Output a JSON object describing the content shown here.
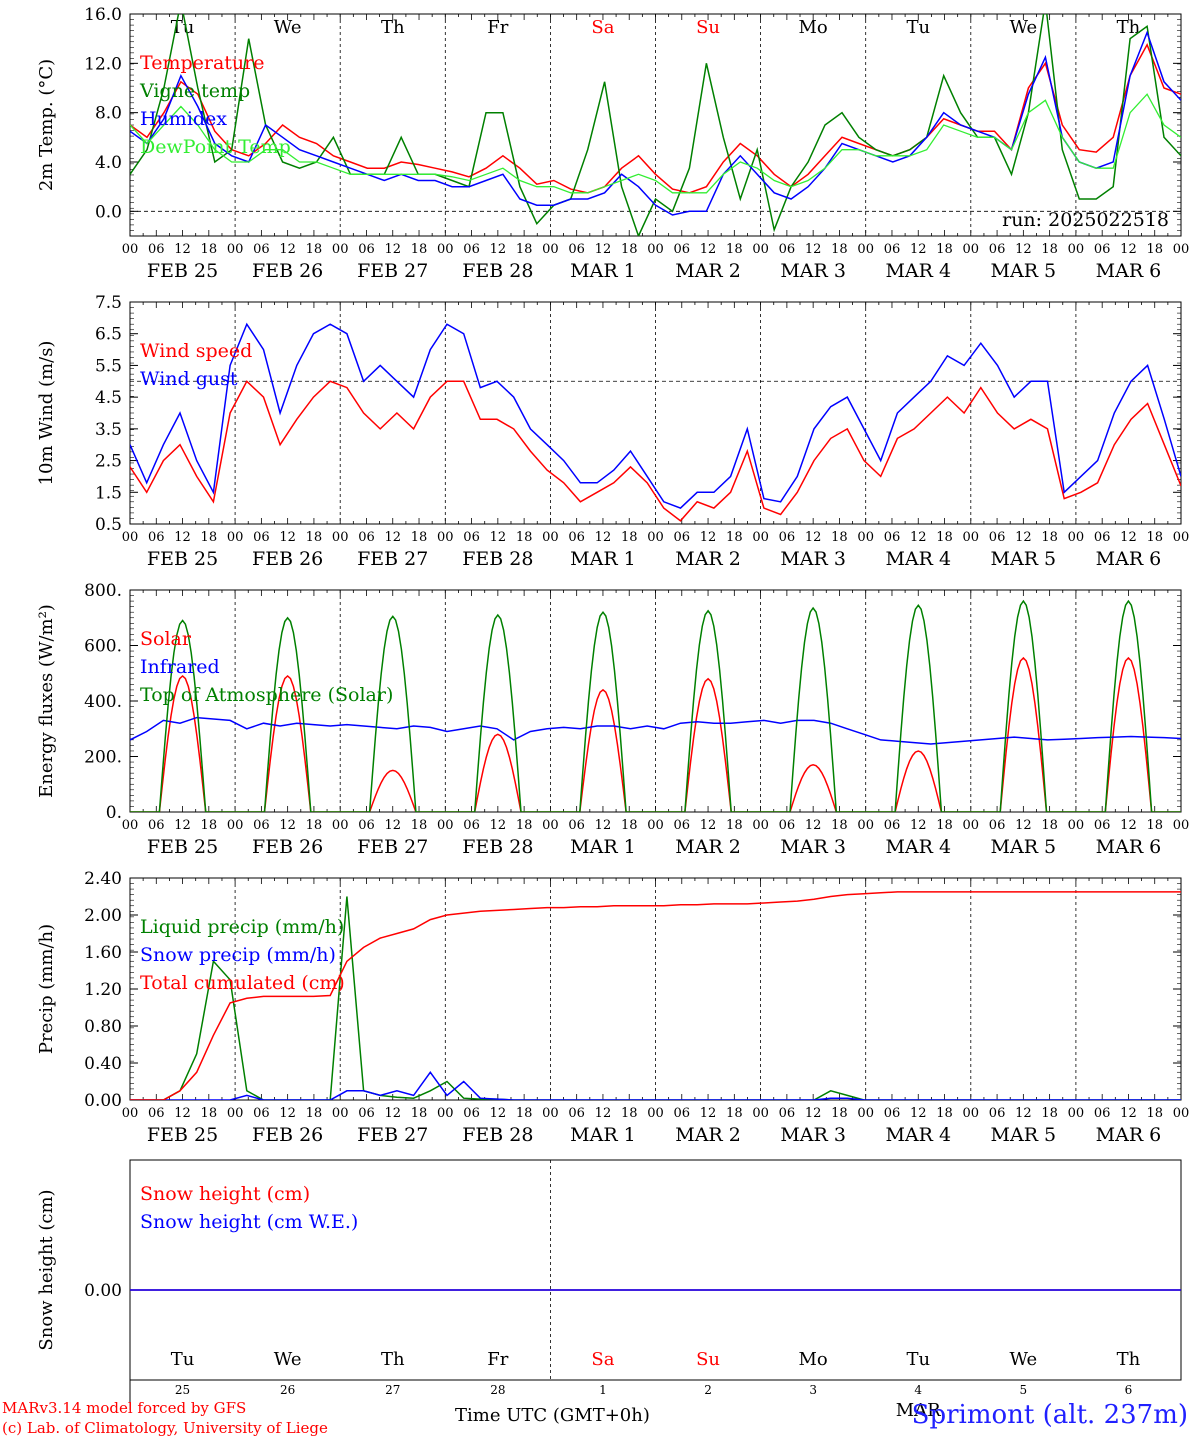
{
  "chart_data": [
    {
      "type": "line",
      "ylabel": "2m Temp. (°C)",
      "ylim": [
        -2,
        16
      ],
      "yticks": [
        "0.0",
        "4.0",
        "8.0",
        "12.0",
        "16.0"
      ],
      "ytick_values": [
        0,
        4,
        8,
        12,
        16
      ],
      "reference_line": 0,
      "run_label": "run: 2025022518",
      "day_names": [
        "Tu",
        "We",
        "Th",
        "Fr",
        "Sa",
        "Su",
        "Mo",
        "Tu",
        "We",
        "Th"
      ],
      "series": [
        {
          "name": "Temperature",
          "color": "#ff0000",
          "values": [
            7.0,
            6.0,
            8.0,
            10.5,
            9.5,
            6.5,
            5.0,
            4.5,
            5.5,
            7.0,
            6.0,
            5.5,
            4.5,
            4.0,
            3.5,
            3.5,
            4.0,
            3.8,
            3.5,
            3.2,
            2.8,
            3.5,
            4.5,
            3.5,
            2.2,
            2.5,
            1.8,
            1.5,
            2.0,
            3.5,
            4.5,
            3.0,
            1.8,
            1.5,
            2.0,
            4.0,
            5.5,
            4.5,
            3.0,
            2.0,
            3.0,
            4.5,
            6.0,
            5.5,
            5.0,
            4.5,
            5.0,
            6.0,
            7.5,
            7.0,
            6.5,
            6.5,
            5.0,
            10.0,
            12.0,
            7.0,
            5.0,
            4.8,
            6.0,
            11.0,
            13.5,
            10.0,
            9.5
          ]
        },
        {
          "name": "Vigne temp",
          "color": "#008000",
          "values": [
            3.0,
            5.0,
            10.0,
            17.0,
            10.0,
            4.0,
            5.0,
            14.0,
            7.0,
            4.0,
            3.5,
            4.0,
            6.0,
            3.0,
            3.0,
            3.0,
            6.0,
            3.0,
            3.0,
            2.5,
            2.0,
            8.0,
            8.0,
            2.0,
            -1.0,
            0.5,
            1.0,
            5.0,
            10.5,
            2.0,
            -2.0,
            1.0,
            0.0,
            3.5,
            12.0,
            6.0,
            1.0,
            5.0,
            -1.5,
            2.0,
            4.0,
            7.0,
            8.0,
            6.0,
            5.0,
            4.5,
            5.0,
            6.0,
            11.0,
            8.0,
            6.0,
            6.0,
            3.0,
            8.0,
            17.0,
            5.0,
            1.0,
            1.0,
            2.0,
            14.0,
            15.0,
            6.0,
            4.5
          ]
        },
        {
          "name": "Humidex",
          "color": "#0000ff",
          "values": [
            6.5,
            5.5,
            7.5,
            11.0,
            8.5,
            5.5,
            4.5,
            4.0,
            7.0,
            6.0,
            5.0,
            4.5,
            4.0,
            3.5,
            3.0,
            2.5,
            3.0,
            2.5,
            2.5,
            2.0,
            2.0,
            2.5,
            3.0,
            1.0,
            0.5,
            0.5,
            1.0,
            1.0,
            1.5,
            3.0,
            2.0,
            0.5,
            -0.3,
            0.0,
            0.0,
            3.0,
            4.5,
            3.0,
            1.5,
            1.0,
            2.0,
            3.5,
            5.5,
            5.0,
            4.5,
            4.0,
            4.5,
            6.0,
            8.0,
            7.0,
            6.5,
            6.0,
            5.0,
            9.5,
            12.5,
            6.0,
            4.0,
            3.5,
            4.0,
            11.0,
            14.5,
            10.5,
            9.0
          ]
        },
        {
          "name": "DewPoint Temp",
          "color": "#33ee33",
          "values": [
            7.0,
            5.5,
            7.0,
            8.5,
            7.0,
            5.0,
            4.0,
            4.0,
            5.0,
            5.0,
            4.0,
            4.0,
            3.5,
            3.0,
            3.0,
            3.0,
            3.0,
            3.0,
            3.0,
            2.8,
            2.5,
            3.0,
            3.5,
            2.5,
            2.0,
            2.0,
            1.5,
            1.5,
            2.0,
            2.5,
            3.0,
            2.5,
            1.5,
            1.5,
            1.5,
            3.0,
            4.0,
            3.5,
            2.5,
            2.0,
            2.5,
            3.5,
            5.0,
            5.0,
            4.5,
            4.5,
            4.5,
            5.0,
            7.0,
            6.5,
            6.0,
            6.0,
            5.0,
            8.0,
            9.0,
            6.0,
            4.0,
            3.5,
            3.5,
            8.0,
            9.5,
            7.0,
            6.0
          ]
        }
      ]
    },
    {
      "type": "line",
      "ylabel": "10m Wind (m/s)",
      "ylim": [
        0.5,
        7.5
      ],
      "yticks": [
        "0.5",
        "1.5",
        "2.5",
        "3.5",
        "4.5",
        "5.5",
        "6.5",
        "7.5"
      ],
      "ytick_values": [
        0.5,
        1.5,
        2.5,
        3.5,
        4.5,
        5.5,
        6.5,
        7.5
      ],
      "reference_line": 5.0,
      "series": [
        {
          "name": "Wind speed",
          "color": "#ff0000",
          "values": [
            2.3,
            1.5,
            2.5,
            3.0,
            2.0,
            1.2,
            4.0,
            5.0,
            4.5,
            3.0,
            3.8,
            4.5,
            5.0,
            4.8,
            4.0,
            3.5,
            4.0,
            3.5,
            4.5,
            5.0,
            5.0,
            3.8,
            3.8,
            3.5,
            2.8,
            2.2,
            1.8,
            1.2,
            1.5,
            1.8,
            2.3,
            1.8,
            1.0,
            0.6,
            1.2,
            1.0,
            1.5,
            2.8,
            1.0,
            0.8,
            1.5,
            2.5,
            3.2,
            3.5,
            2.5,
            2.0,
            3.2,
            3.5,
            4.0,
            4.5,
            4.0,
            4.8,
            4.0,
            3.5,
            3.8,
            3.5,
            1.3,
            1.5,
            1.8,
            3.0,
            3.8,
            4.3,
            3.0,
            1.7
          ]
        },
        {
          "name": "Wind gust",
          "color": "#0000ff",
          "values": [
            3.0,
            1.8,
            3.0,
            4.0,
            2.5,
            1.5,
            5.5,
            6.8,
            6.0,
            4.0,
            5.5,
            6.5,
            6.8,
            6.5,
            5.0,
            5.5,
            5.0,
            4.5,
            6.0,
            6.8,
            6.5,
            4.8,
            5.0,
            4.5,
            3.5,
            3.0,
            2.5,
            1.8,
            1.8,
            2.2,
            2.8,
            2.0,
            1.2,
            1.0,
            1.5,
            1.5,
            2.0,
            3.5,
            1.3,
            1.2,
            2.0,
            3.5,
            4.2,
            4.5,
            3.5,
            2.5,
            4.0,
            4.5,
            5.0,
            5.8,
            5.5,
            6.2,
            5.5,
            4.5,
            5.0,
            5.0,
            1.5,
            2.0,
            2.5,
            4.0,
            5.0,
            5.5,
            3.8,
            2.0
          ]
        }
      ]
    },
    {
      "type": "line",
      "ylabel": "Energy fluxes (W/m²)",
      "ylim": [
        0,
        800
      ],
      "yticks": [
        "0.",
        "200.",
        "400.",
        "600.",
        "800."
      ],
      "ytick_values": [
        0,
        200,
        400,
        600,
        800
      ],
      "series": [
        {
          "name": "Solar",
          "color": "#ff0000",
          "peaks": [
            490,
            490,
            150,
            280,
            440,
            480,
            170,
            220,
            555,
            555
          ]
        },
        {
          "name": "Infrared",
          "color": "#0000ff",
          "values": [
            260,
            290,
            330,
            320,
            340,
            335,
            330,
            300,
            320,
            310,
            320,
            315,
            310,
            315,
            310,
            305,
            300,
            310,
            305,
            290,
            300,
            310,
            300,
            260,
            290,
            300,
            305,
            300,
            310,
            310,
            300,
            310,
            300,
            320,
            325,
            320,
            320,
            325,
            330,
            320,
            330,
            330,
            320,
            300,
            280,
            260,
            255,
            250,
            245,
            250,
            255,
            260,
            265,
            270,
            265,
            260,
            262,
            265,
            268,
            270,
            272,
            270,
            268,
            265
          ]
        },
        {
          "name": "Top of Atmosphere (Solar)",
          "color": "#008000",
          "peaks": [
            690,
            700,
            705,
            710,
            720,
            725,
            735,
            745,
            760,
            760
          ]
        }
      ]
    },
    {
      "type": "line",
      "ylabel": "Precip (mm/h)",
      "ylim": [
        0,
        2.4
      ],
      "yticks": [
        "0.00",
        "0.40",
        "0.80",
        "1.20",
        "1.60",
        "2.00",
        "2.40"
      ],
      "ytick_values": [
        0,
        0.4,
        0.8,
        1.2,
        1.6,
        2.0,
        2.4
      ],
      "series": [
        {
          "name": "Liquid precip (mm/h)",
          "color": "#008000",
          "values": [
            0,
            0,
            0,
            0.1,
            0.5,
            1.5,
            1.3,
            0.1,
            0,
            0,
            0,
            0,
            0,
            2.2,
            0.1,
            0.05,
            0.03,
            0.02,
            0.1,
            0.2,
            0.02,
            0.01,
            0.01,
            0,
            0,
            0,
            0,
            0,
            0,
            0,
            0,
            0,
            0,
            0,
            0,
            0,
            0,
            0,
            0,
            0,
            0,
            0,
            0.1,
            0.05,
            0,
            0,
            0,
            0,
            0,
            0,
            0,
            0,
            0,
            0,
            0,
            0,
            0,
            0,
            0,
            0,
            0,
            0,
            0,
            0
          ]
        },
        {
          "name": "Snow precip (mm/h)",
          "color": "#0000ff",
          "values": [
            0,
            0,
            0,
            0,
            0,
            0,
            0,
            0.05,
            0,
            0,
            0,
            0,
            0,
            0.1,
            0.1,
            0.05,
            0.1,
            0.05,
            0.3,
            0.05,
            0.2,
            0.02,
            0.01,
            0,
            0,
            0,
            0,
            0,
            0,
            0,
            0,
            0,
            0,
            0,
            0,
            0,
            0,
            0,
            0,
            0,
            0,
            0,
            0.02,
            0.02,
            0,
            0,
            0,
            0,
            0,
            0,
            0,
            0,
            0,
            0,
            0,
            0,
            0,
            0,
            0,
            0,
            0,
            0,
            0,
            0
          ]
        },
        {
          "name": "Total cumulated (cm)",
          "color": "#ff0000",
          "values": [
            0,
            0,
            0,
            0.1,
            0.3,
            0.7,
            1.05,
            1.1,
            1.12,
            1.12,
            1.12,
            1.12,
            1.13,
            1.5,
            1.65,
            1.75,
            1.8,
            1.85,
            1.95,
            2.0,
            2.02,
            2.04,
            2.05,
            2.06,
            2.07,
            2.08,
            2.08,
            2.09,
            2.09,
            2.1,
            2.1,
            2.1,
            2.1,
            2.11,
            2.11,
            2.12,
            2.12,
            2.12,
            2.13,
            2.14,
            2.15,
            2.17,
            2.2,
            2.22,
            2.23,
            2.24,
            2.25,
            2.25,
            2.25,
            2.25,
            2.25,
            2.25,
            2.25,
            2.25,
            2.25,
            2.25,
            2.25,
            2.25,
            2.25,
            2.25,
            2.25,
            2.25,
            2.25,
            2.25
          ]
        }
      ]
    },
    {
      "type": "line",
      "ylabel": "Snow height (cm)",
      "yticks": [
        "0.00"
      ],
      "ytick_values": [
        0
      ],
      "series": [
        {
          "name": "Snow height (cm)",
          "color": "#ff0000",
          "values": [
            0,
            0
          ]
        },
        {
          "name": "Snow height (cm W.E.)",
          "color": "#0000ff",
          "values": [
            0,
            0
          ]
        }
      ],
      "day_names": [
        "Tu",
        "We",
        "Th",
        "Fr",
        "Sa",
        "Su",
        "Mo",
        "Tu",
        "We",
        "Th"
      ],
      "day_numbers": [
        "25",
        "26",
        "27",
        "28",
        "1",
        "2",
        "3",
        "4",
        "5",
        "6"
      ],
      "month_label": "MAR"
    }
  ],
  "x_axis": {
    "hour_labels": [
      "00",
      "06",
      "12",
      "18"
    ],
    "final_hour_label": "00",
    "date_labels": [
      "FEB 25",
      "FEB 26",
      "FEB 27",
      "FEB 28",
      "MAR  1",
      "MAR  2",
      "MAR  3",
      "MAR  4",
      "MAR  5",
      "MAR  6"
    ],
    "weekend_days": [
      4,
      5
    ],
    "days": 10
  },
  "footer": {
    "credit_line1": "MARv3.14 model forced by GFS",
    "credit_line2": "(c) Lab. of Climatology, University of Liege",
    "xlabel": "Time UTC (GMT+0h)",
    "station": "Sprimont (alt. 237m)"
  }
}
